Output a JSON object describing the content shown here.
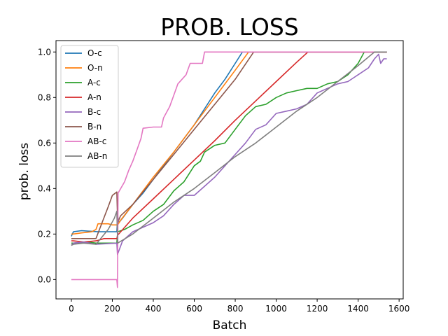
{
  "chart_data": {
    "type": "line",
    "title": "PROB. LOSS",
    "xlabel": "Batch",
    "ylabel": "prob. loss",
    "xlim": [
      -75,
      1620
    ],
    "ylim": [
      -0.085,
      1.05
    ],
    "xticks": [
      "0",
      "200",
      "400",
      "600",
      "800",
      "1000",
      "1200",
      "1400",
      "1600"
    ],
    "xtick_values": [
      0,
      200,
      400,
      600,
      800,
      1000,
      1200,
      1400,
      1600
    ],
    "yticks": [
      "0.0",
      "0.2",
      "0.4",
      "0.6",
      "0.8",
      "1.0"
    ],
    "ytick_values": [
      0.0,
      0.2,
      0.4,
      0.6,
      0.8,
      1.0
    ],
    "grid": false,
    "legend_position": "top-left",
    "series": [
      {
        "name": "O-c",
        "color": "#1f77b4",
        "points": [
          [
            0,
            0.19
          ],
          [
            10,
            0.21
          ],
          [
            50,
            0.215
          ],
          [
            130,
            0.21
          ],
          [
            160,
            0.21
          ],
          [
            200,
            0.21
          ],
          [
            222,
            0.21
          ],
          [
            226,
            0.28
          ],
          [
            232,
            0.25
          ],
          [
            250,
            0.27
          ],
          [
            300,
            0.33
          ],
          [
            350,
            0.38
          ],
          [
            400,
            0.44
          ],
          [
            450,
            0.5
          ],
          [
            500,
            0.56
          ],
          [
            550,
            0.62
          ],
          [
            600,
            0.68
          ],
          [
            650,
            0.75
          ],
          [
            700,
            0.82
          ],
          [
            750,
            0.88
          ],
          [
            800,
            0.95
          ],
          [
            835,
            1.0
          ],
          [
            1540,
            1.0
          ]
        ]
      },
      {
        "name": "O-n",
        "color": "#ff7f0e",
        "points": [
          [
            0,
            0.2
          ],
          [
            10,
            0.2
          ],
          [
            50,
            0.205
          ],
          [
            100,
            0.21
          ],
          [
            120,
            0.22
          ],
          [
            130,
            0.245
          ],
          [
            180,
            0.245
          ],
          [
            200,
            0.24
          ],
          [
            222,
            0.24
          ],
          [
            226,
            0.24
          ],
          [
            240,
            0.26
          ],
          [
            300,
            0.33
          ],
          [
            400,
            0.45
          ],
          [
            500,
            0.56
          ],
          [
            600,
            0.68
          ],
          [
            700,
            0.8
          ],
          [
            800,
            0.92
          ],
          [
            865,
            1.0
          ],
          [
            1540,
            1.0
          ]
        ]
      },
      {
        "name": "A-c",
        "color": "#2ca02c",
        "points": [
          [
            0,
            0.16
          ],
          [
            10,
            0.16
          ],
          [
            80,
            0.165
          ],
          [
            120,
            0.16
          ],
          [
            222,
            0.16
          ],
          [
            226,
            0.21
          ],
          [
            260,
            0.22
          ],
          [
            300,
            0.24
          ],
          [
            350,
            0.26
          ],
          [
            400,
            0.3
          ],
          [
            450,
            0.33
          ],
          [
            500,
            0.39
          ],
          [
            550,
            0.43
          ],
          [
            600,
            0.5
          ],
          [
            630,
            0.52
          ],
          [
            650,
            0.56
          ],
          [
            700,
            0.59
          ],
          [
            750,
            0.6
          ],
          [
            800,
            0.66
          ],
          [
            850,
            0.72
          ],
          [
            900,
            0.76
          ],
          [
            950,
            0.77
          ],
          [
            1000,
            0.8
          ],
          [
            1050,
            0.82
          ],
          [
            1100,
            0.83
          ],
          [
            1150,
            0.84
          ],
          [
            1200,
            0.84
          ],
          [
            1250,
            0.86
          ],
          [
            1300,
            0.87
          ],
          [
            1350,
            0.9
          ],
          [
            1400,
            0.95
          ],
          [
            1430,
            1.0
          ],
          [
            1540,
            1.0
          ]
        ]
      },
      {
        "name": "A-n",
        "color": "#d62728",
        "points": [
          [
            0,
            0.17
          ],
          [
            10,
            0.17
          ],
          [
            60,
            0.165
          ],
          [
            120,
            0.17
          ],
          [
            160,
            0.18
          ],
          [
            222,
            0.18
          ],
          [
            226,
            0.195
          ],
          [
            300,
            0.27
          ],
          [
            400,
            0.355
          ],
          [
            500,
            0.44
          ],
          [
            600,
            0.525
          ],
          [
            700,
            0.61
          ],
          [
            800,
            0.7
          ],
          [
            900,
            0.785
          ],
          [
            1000,
            0.87
          ],
          [
            1100,
            0.955
          ],
          [
            1155,
            1.0
          ],
          [
            1540,
            1.0
          ]
        ]
      },
      {
        "name": "B-c",
        "color": "#9467bd",
        "points": [
          [
            0,
            0.15
          ],
          [
            10,
            0.16
          ],
          [
            60,
            0.165
          ],
          [
            120,
            0.155
          ],
          [
            222,
            0.16
          ],
          [
            225,
            0.11
          ],
          [
            250,
            0.17
          ],
          [
            300,
            0.21
          ],
          [
            350,
            0.23
          ],
          [
            400,
            0.25
          ],
          [
            450,
            0.28
          ],
          [
            500,
            0.33
          ],
          [
            550,
            0.37
          ],
          [
            600,
            0.37
          ],
          [
            650,
            0.41
          ],
          [
            700,
            0.45
          ],
          [
            750,
            0.5
          ],
          [
            800,
            0.55
          ],
          [
            850,
            0.6
          ],
          [
            900,
            0.66
          ],
          [
            950,
            0.68
          ],
          [
            1000,
            0.73
          ],
          [
            1050,
            0.74
          ],
          [
            1100,
            0.75
          ],
          [
            1150,
            0.77
          ],
          [
            1200,
            0.82
          ],
          [
            1250,
            0.84
          ],
          [
            1300,
            0.86
          ],
          [
            1350,
            0.87
          ],
          [
            1400,
            0.9
          ],
          [
            1450,
            0.93
          ],
          [
            1480,
            0.97
          ],
          [
            1500,
            0.99
          ],
          [
            1510,
            0.95
          ],
          [
            1525,
            0.97
          ],
          [
            1540,
            0.97
          ]
        ]
      },
      {
        "name": "B-n",
        "color": "#8c564b",
        "points": [
          [
            0,
            0.18
          ],
          [
            10,
            0.18
          ],
          [
            60,
            0.18
          ],
          [
            120,
            0.18
          ],
          [
            150,
            0.25
          ],
          [
            180,
            0.32
          ],
          [
            200,
            0.37
          ],
          [
            215,
            0.38
          ],
          [
            222,
            0.385
          ],
          [
            226,
            0.25
          ],
          [
            240,
            0.28
          ],
          [
            300,
            0.33
          ],
          [
            400,
            0.44
          ],
          [
            500,
            0.55
          ],
          [
            600,
            0.66
          ],
          [
            700,
            0.77
          ],
          [
            800,
            0.88
          ],
          [
            890,
            1.0
          ],
          [
            1540,
            1.0
          ]
        ]
      },
      {
        "name": "AB-c",
        "color": "#e377c2",
        "points": [
          [
            0,
            0.0
          ],
          [
            100,
            0.0
          ],
          [
            200,
            0.0
          ],
          [
            222,
            0.0
          ],
          [
            225,
            -0.035
          ],
          [
            228,
            0.38
          ],
          [
            260,
            0.43
          ],
          [
            280,
            0.48
          ],
          [
            300,
            0.52
          ],
          [
            320,
            0.57
          ],
          [
            340,
            0.62
          ],
          [
            350,
            0.665
          ],
          [
            400,
            0.67
          ],
          [
            440,
            0.67
          ],
          [
            450,
            0.71
          ],
          [
            480,
            0.76
          ],
          [
            500,
            0.81
          ],
          [
            520,
            0.86
          ],
          [
            560,
            0.9
          ],
          [
            580,
            0.95
          ],
          [
            640,
            0.95
          ],
          [
            650,
            1.0
          ],
          [
            1540,
            1.0
          ]
        ]
      },
      {
        "name": "AB-n",
        "color": "#7f7f7f",
        "points": [
          [
            0,
            0.15
          ],
          [
            10,
            0.155
          ],
          [
            60,
            0.16
          ],
          [
            120,
            0.155
          ],
          [
            180,
            0.22
          ],
          [
            210,
            0.27
          ],
          [
            222,
            0.3
          ],
          [
            226,
            0.16
          ],
          [
            300,
            0.2
          ],
          [
            400,
            0.27
          ],
          [
            500,
            0.34
          ],
          [
            600,
            0.4
          ],
          [
            700,
            0.47
          ],
          [
            800,
            0.54
          ],
          [
            900,
            0.6
          ],
          [
            1000,
            0.67
          ],
          [
            1100,
            0.74
          ],
          [
            1200,
            0.8
          ],
          [
            1300,
            0.87
          ],
          [
            1400,
            0.94
          ],
          [
            1480,
            1.0
          ],
          [
            1540,
            1.0
          ]
        ]
      }
    ]
  }
}
